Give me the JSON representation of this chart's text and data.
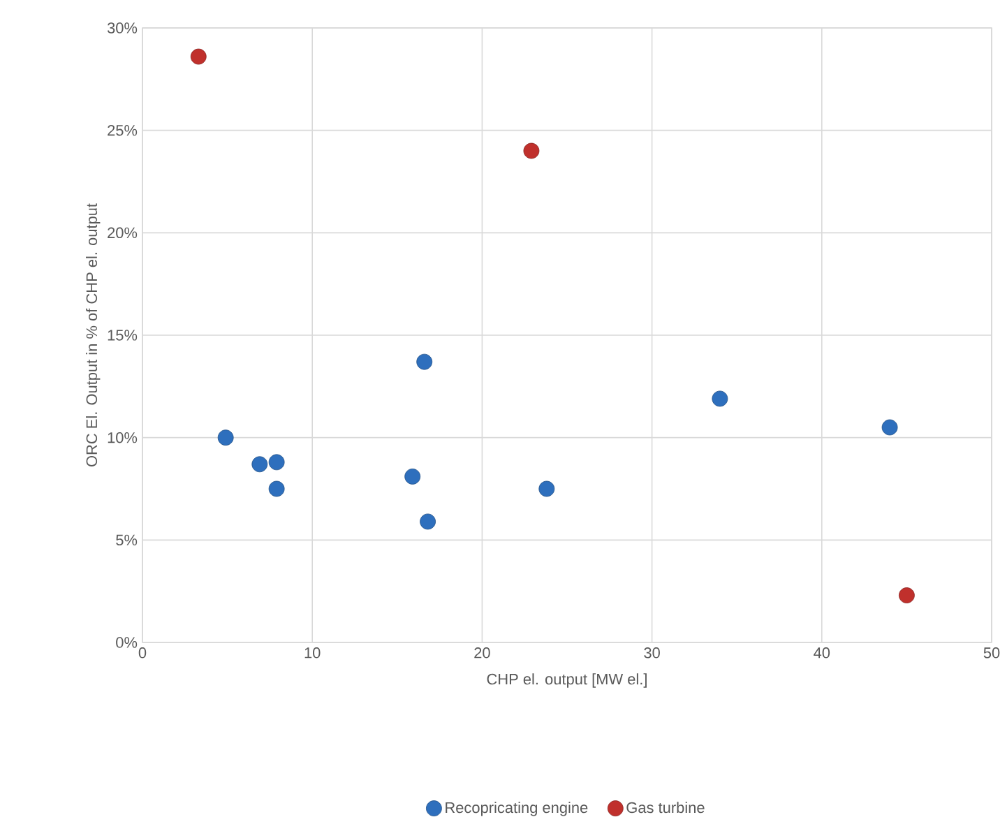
{
  "chart_data": {
    "type": "scatter",
    "xlabel": "CHP el. output [MW el.]",
    "ylabel": "ORC El. Output in % of CHP el. output",
    "xlim": [
      0,
      50
    ],
    "xticks": [
      0,
      10,
      20,
      30,
      40,
      50
    ],
    "ylim": [
      0,
      30
    ],
    "yticks": [
      {
        "value": 0,
        "label": "0%"
      },
      {
        "value": 5,
        "label": "5%"
      },
      {
        "value": 10,
        "label": "10%"
      },
      {
        "value": 15,
        "label": "15%"
      },
      {
        "value": 20,
        "label": "20%"
      },
      {
        "value": 25,
        "label": "25%"
      },
      {
        "value": 30,
        "label": "30%"
      }
    ],
    "grid": true,
    "legend": "bottom",
    "marker": "circle",
    "series": [
      {
        "name": "Recopricating engine",
        "color": "#2e6fbd",
        "x": [
          4.9,
          6.9,
          7.9,
          7.9,
          15.9,
          16.6,
          16.8,
          23.8,
          34,
          44
        ],
        "values": [
          10.0,
          8.7,
          8.8,
          7.5,
          8.1,
          13.7,
          5.9,
          7.5,
          11.9,
          10.5
        ]
      },
      {
        "name": "Gas turbine",
        "color": "#c0302c",
        "x": [
          3.3,
          22.9,
          45.0
        ],
        "values": [
          28.6,
          24.0,
          2.3
        ]
      }
    ]
  }
}
